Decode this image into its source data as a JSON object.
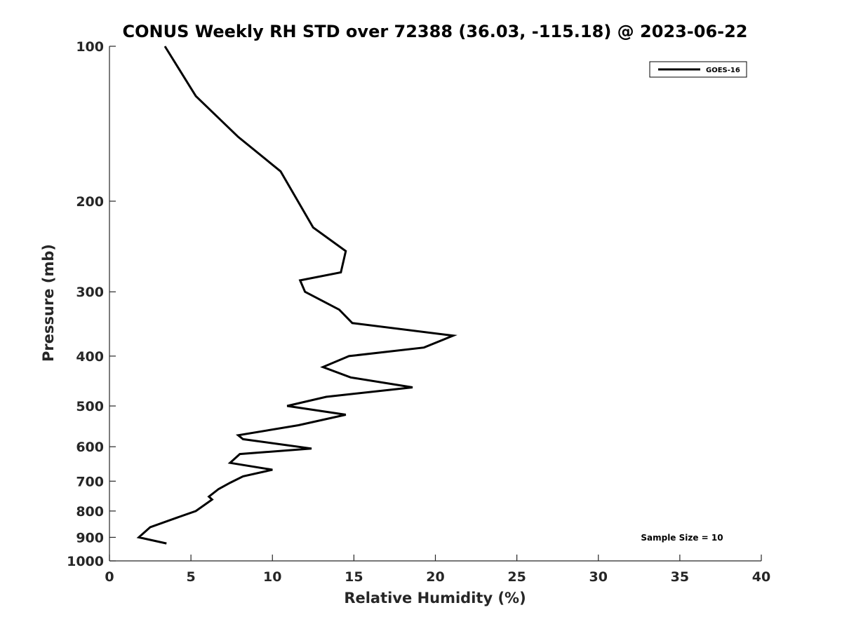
{
  "chart_data": {
    "type": "line",
    "title": "CONUS Weekly RH STD over 72388 (36.03, -115.18) @ 2023-06-22",
    "xlabel": "Relative Humidity (%)",
    "ylabel": "Pressure (mb)",
    "xlim": [
      0,
      40
    ],
    "ylim": [
      100,
      1000
    ],
    "y_scale": "log",
    "y_reversed": true,
    "x_ticks": [
      0,
      5,
      10,
      15,
      20,
      25,
      30,
      35,
      40
    ],
    "y_ticks": [
      100,
      200,
      300,
      400,
      500,
      600,
      700,
      800,
      900,
      1000
    ],
    "grid": false,
    "legend_position": "top-right",
    "series": [
      {
        "name": "GOES-16",
        "color": "#000000",
        "points": [
          [
            3.4,
            100
          ],
          [
            5.3,
            125
          ],
          [
            7.9,
            150
          ],
          [
            10.5,
            175
          ],
          [
            12.5,
            225
          ],
          [
            14.5,
            250
          ],
          [
            14.2,
            275
          ],
          [
            11.7,
            285
          ],
          [
            12.0,
            300
          ],
          [
            14.1,
            325
          ],
          [
            14.9,
            345
          ],
          [
            21.1,
            365
          ],
          [
            19.3,
            385
          ],
          [
            14.7,
            400
          ],
          [
            13.1,
            420
          ],
          [
            14.8,
            440
          ],
          [
            18.6,
            460
          ],
          [
            13.3,
            480
          ],
          [
            10.9,
            500
          ],
          [
            14.5,
            520
          ],
          [
            11.6,
            545
          ],
          [
            7.9,
            570
          ],
          [
            8.2,
            580
          ],
          [
            12.4,
            605
          ],
          [
            8.0,
            620
          ],
          [
            7.4,
            645
          ],
          [
            10.0,
            665
          ],
          [
            8.2,
            685
          ],
          [
            7.4,
            705
          ],
          [
            6.7,
            725
          ],
          [
            6.1,
            750
          ],
          [
            6.3,
            760
          ],
          [
            5.3,
            800
          ],
          [
            4.1,
            825
          ],
          [
            2.5,
            860
          ],
          [
            1.8,
            900
          ],
          [
            3.5,
            925
          ]
        ]
      }
    ],
    "annotations": [
      "Sample Size = 10"
    ]
  }
}
